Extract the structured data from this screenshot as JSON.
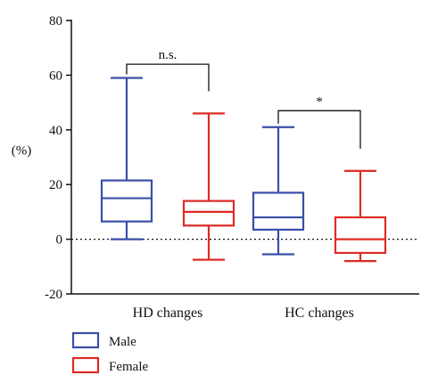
{
  "chart_data": {
    "type": "box",
    "ylabel": "(%)",
    "ylim": [
      -20,
      80
    ],
    "yticks": [
      80,
      60,
      40,
      20,
      0,
      -20
    ],
    "categories": [
      "HD changes",
      "HC changes"
    ],
    "reference_line": {
      "y": 0,
      "style": "dotted"
    },
    "series": [
      {
        "name": "Male",
        "color": "#3a4ea8",
        "boxes": [
          {
            "category": "HD changes",
            "min": 0,
            "q1": 6.5,
            "median": 15,
            "q3": 21.5,
            "max": 59
          },
          {
            "category": "HC changes",
            "min": -5.5,
            "q1": 3.5,
            "median": 8,
            "q3": 17,
            "max": 41
          }
        ]
      },
      {
        "name": "Female",
        "color": "#dd2b25",
        "boxes": [
          {
            "category": "HD changes",
            "min": -7.5,
            "q1": 5,
            "median": 10,
            "q3": 14,
            "max": 46
          },
          {
            "category": "HC changes",
            "min": -8,
            "q1": -5,
            "median": 0,
            "q3": 8,
            "max": 25
          }
        ]
      }
    ],
    "significance": [
      {
        "category": "HD changes",
        "label": "n.s.",
        "y": 64
      },
      {
        "category": "HC changes",
        "label": "*",
        "y": 47
      }
    ],
    "legend": {
      "position": "bottom-left",
      "entries": [
        "Male",
        "Female"
      ]
    }
  }
}
